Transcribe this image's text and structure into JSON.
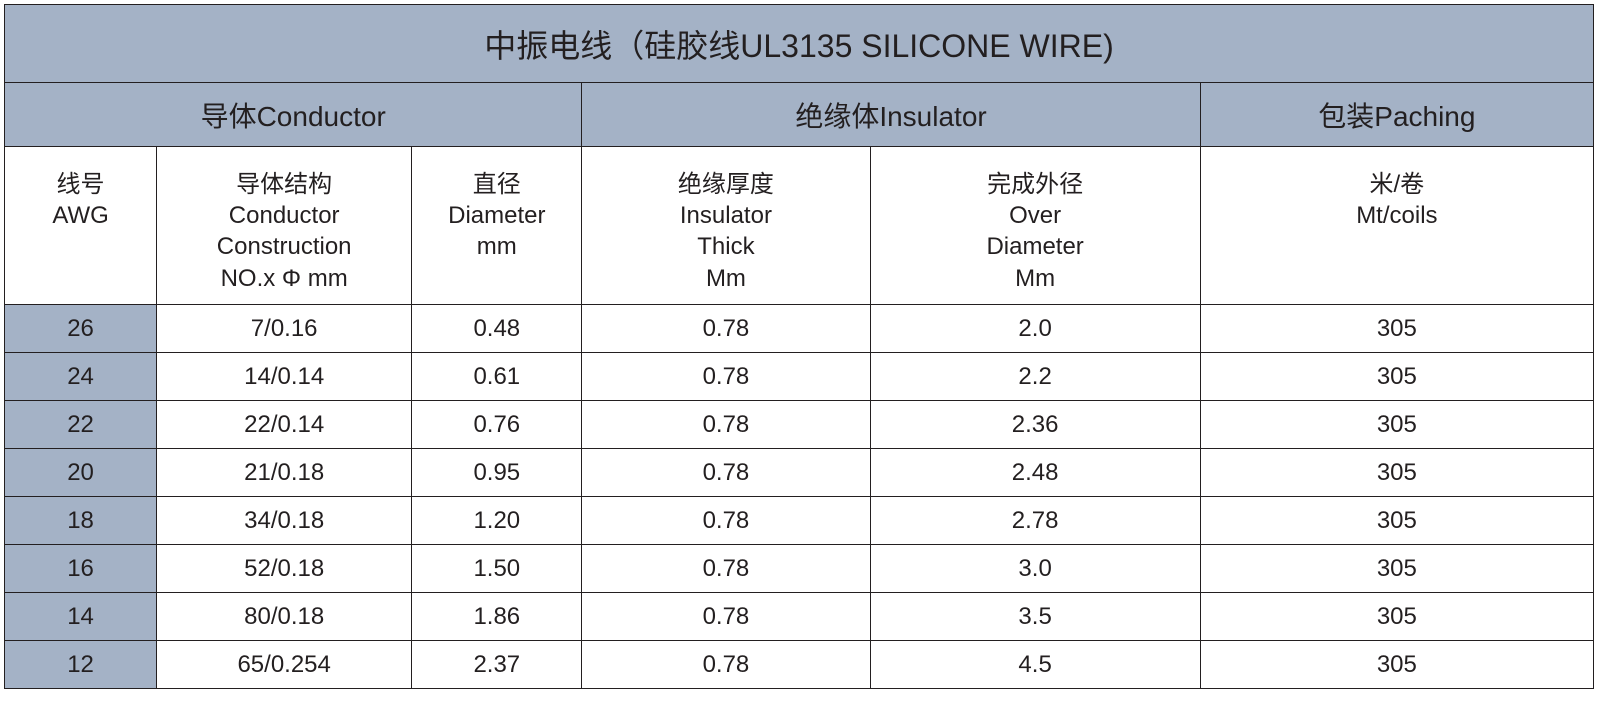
{
  "table": {
    "title": "中振电线（硅胶线UL3135 SILICONE WIRE)",
    "groups": {
      "conductor": "导体Conductor",
      "insulator": "绝缘体Insulator",
      "packing": "包装Paching"
    },
    "subheaders": {
      "awg": "线号\nAWG",
      "construction": "导体结构\nConductor\nConstruction\nNO.x Φ mm",
      "diameter": "直径\nDiameter\nmm",
      "thick": "绝缘厚度\nInsulator\nThick\nMm",
      "od": "完成外径\nOver\nDiameter\nMm",
      "packing": "米/卷\nMt/coils"
    },
    "colors": {
      "header_bg": "#a4b2c6",
      "cell_bg": "#ffffff",
      "border": "#231f20",
      "text": "#231f20"
    },
    "font_sizes": {
      "title": 32,
      "group": 28,
      "subheader": 24,
      "data": 24
    },
    "column_widths": {
      "awg": 152,
      "construction": 255,
      "diameter": 170,
      "thick": 288,
      "od": 330,
      "packing": 393
    },
    "rows": [
      {
        "awg": "26",
        "construction": "7/0.16",
        "diameter": "0.48",
        "thick": "0.78",
        "od": "2.0",
        "packing": "305"
      },
      {
        "awg": "24",
        "construction": "14/0.14",
        "diameter": "0.61",
        "thick": "0.78",
        "od": "2.2",
        "packing": "305"
      },
      {
        "awg": "22",
        "construction": "22/0.14",
        "diameter": "0.76",
        "thick": "0.78",
        "od": "2.36",
        "packing": "305"
      },
      {
        "awg": "20",
        "construction": "21/0.18",
        "diameter": "0.95",
        "thick": "0.78",
        "od": "2.48",
        "packing": "305"
      },
      {
        "awg": "18",
        "construction": "34/0.18",
        "diameter": "1.20",
        "thick": "0.78",
        "od": "2.78",
        "packing": "305"
      },
      {
        "awg": "16",
        "construction": "52/0.18",
        "diameter": "1.50",
        "thick": "0.78",
        "od": "3.0",
        "packing": "305"
      },
      {
        "awg": "14",
        "construction": "80/0.18",
        "diameter": "1.86",
        "thick": "0.78",
        "od": "3.5",
        "packing": "305"
      },
      {
        "awg": "12",
        "construction": "65/0.254",
        "diameter": "2.37",
        "thick": "0.78",
        "od": "4.5",
        "packing": "305"
      }
    ]
  }
}
